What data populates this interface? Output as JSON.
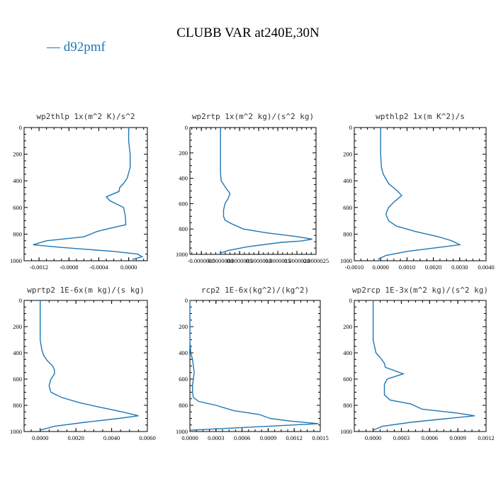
{
  "title": "CLUBB VAR at240E,30N",
  "legend": {
    "label": "d92pmf",
    "color": "#1f77b4"
  },
  "chart_data": [
    {
      "type": "line",
      "title": "wp2thlp   1x(m^2 K)/s^2",
      "xlim": [
        -0.0014,
        0.00025
      ],
      "xticks": [
        -0.0012,
        -0.0008,
        -0.0004,
        0.0
      ],
      "xtick_labels": [
        "-0.0012",
        "-0.0008",
        "-0.0004",
        "0.0000"
      ],
      "ylim": [
        1000,
        0
      ],
      "yticks": [
        0,
        200,
        400,
        600,
        800,
        1000
      ],
      "series": [
        {
          "y": [
            0,
            100,
            200,
            300,
            380,
            420,
            450,
            480,
            520,
            550,
            600,
            650,
            700,
            730,
            760,
            780,
            820,
            850,
            880,
            900,
            930,
            950,
            970,
            990
          ],
          "x": [
            0.0,
            0.0,
            2e-05,
            2e-05,
            -2e-05,
            -7e-05,
            -0.00012,
            -0.00013,
            -0.0003,
            -0.00025,
            -7e-05,
            -5e-05,
            -4e-05,
            -4e-05,
            -0.00028,
            -0.00042,
            -0.0006,
            -0.0011,
            -0.00128,
            -0.0009,
            -0.0002,
            0.00012,
            0.00018,
            5e-05
          ]
        }
      ]
    },
    {
      "type": "line",
      "title": "wp2rtp   1x(m^2 kg)/(s^2 kg)",
      "xlim": [
        -8e-07,
        2.5e-06
      ],
      "xticks": [
        -5e-07,
        0.0,
        5e-07,
        1e-06,
        1.5e-06,
        2e-06,
        2.5e-06
      ],
      "xtick_labels": [
        "-0.0000005",
        "0.0000000",
        "0.0000005",
        "0.0000010",
        "0.0000015",
        "0.0000020",
        "0.0000025"
      ],
      "ylim": [
        1000,
        0
      ],
      "yticks": [
        0,
        200,
        400,
        600,
        800,
        1000
      ],
      "series": [
        {
          "y": [
            0,
            100,
            200,
            300,
            360,
            420,
            480,
            520,
            560,
            600,
            650,
            700,
            730,
            760,
            800,
            830,
            860,
            880,
            895,
            905,
            940,
            970,
            990
          ],
          "x": [
            0.0,
            0.0,
            0.0,
            0.0,
            0.0,
            2e-08,
            1.5e-07,
            2.5e-07,
            2e-07,
            1.2e-07,
            8e-08,
            8e-08,
            1.2e-07,
            3e-07,
            6e-07,
            1.2e-06,
            2e-06,
            2.4e-06,
            2.1e-06,
            1.6e-06,
            7e-07,
            2e-07,
            0.0
          ]
        }
      ]
    },
    {
      "type": "line",
      "title": "wpthlp2   1x(m K^2)/s",
      "xlim": [
        -0.001,
        0.004
      ],
      "xticks": [
        -0.001,
        0.0,
        0.001,
        0.002,
        0.003,
        0.004
      ],
      "xtick_labels": [
        "-0.0010",
        "0.0000",
        "0.0010",
        "0.0020",
        "0.0030",
        "0.0040"
      ],
      "ylim": [
        1000,
        0
      ],
      "yticks": [
        0,
        200,
        400,
        600,
        800,
        1000
      ],
      "series": [
        {
          "y": [
            0,
            100,
            200,
            300,
            350,
            420,
            470,
            510,
            560,
            600,
            650,
            700,
            740,
            780,
            820,
            850,
            880,
            900,
            930,
            960,
            990
          ],
          "x": [
            0.0,
            0.0,
            0.0,
            3e-05,
            0.0001,
            0.0003,
            0.0006,
            0.0008,
            0.0005,
            0.0003,
            0.0002,
            0.0003,
            0.0006,
            0.0013,
            0.0022,
            0.0027,
            0.003,
            0.0022,
            0.001,
            0.0002,
            -0.0001
          ]
        }
      ]
    },
    {
      "type": "line",
      "title": "wprtp2   1E-6x(m kg)/(s kg)",
      "xlim": [
        -0.0009,
        0.006
      ],
      "xticks": [
        0.0,
        0.002,
        0.004,
        0.006
      ],
      "xtick_labels": [
        "0.0000",
        "0.0020",
        "0.0040",
        "0.0060"
      ],
      "ylim": [
        1000,
        0
      ],
      "yticks": [
        0,
        200,
        400,
        600,
        800,
        1000
      ],
      "series": [
        {
          "y": [
            0,
            100,
            200,
            300,
            380,
            420,
            460,
            500,
            530,
            560,
            600,
            650,
            700,
            740,
            780,
            810,
            850,
            880,
            900,
            930,
            960,
            990
          ],
          "x": [
            0.0,
            0.0,
            0.0,
            0.0,
            0.0001,
            0.0002,
            0.0004,
            0.0007,
            0.0008,
            0.0008,
            0.0006,
            0.0005,
            0.0006,
            0.0012,
            0.0022,
            0.0032,
            0.0046,
            0.0055,
            0.0044,
            0.0025,
            0.0008,
            0.0
          ]
        }
      ]
    },
    {
      "type": "line",
      "title": "rcp2   1E-6x(kg^2)/(kg^2)",
      "xlim": [
        0.0,
        0.0015
      ],
      "xticks": [
        0.0,
        0.0003,
        0.0006,
        0.0009,
        0.0012,
        0.0015
      ],
      "xtick_labels": [
        "0.0000",
        "0.0003",
        "0.0006",
        "0.0009",
        "0.0012",
        "0.0015"
      ],
      "ylim": [
        1000,
        0
      ],
      "yticks": [
        0,
        200,
        400,
        600,
        800,
        1000
      ],
      "series": [
        {
          "y": [
            0,
            100,
            200,
            300,
            400,
            450,
            500,
            550,
            600,
            650,
            700,
            740,
            770,
            800,
            840,
            870,
            900,
            920,
            940,
            960,
            980,
            990
          ],
          "x": [
            0.0,
            0.0,
            0.0,
            0.0,
            1e-05,
            3e-05,
            4e-05,
            5e-05,
            4e-05,
            3e-05,
            3e-05,
            4e-05,
            0.0001,
            0.0003,
            0.0005,
            0.0008,
            0.00092,
            0.00115,
            0.00148,
            0.0009,
            0.0003,
            0.0
          ]
        }
      ]
    },
    {
      "type": "line",
      "title": "wp2rcp   1E-3x(m^2 kg)/(s^2 kg)",
      "xlim": [
        -0.0002,
        0.0012
      ],
      "xticks": [
        0.0,
        0.0003,
        0.0006,
        0.0009,
        0.0012
      ],
      "xtick_labels": [
        "0.0000",
        "0.0003",
        "0.0006",
        "0.0009",
        "0.0012"
      ],
      "ylim": [
        1000,
        0
      ],
      "yticks": [
        0,
        200,
        400,
        600,
        800,
        1000
      ],
      "series": [
        {
          "y": [
            0,
            100,
            200,
            300,
            400,
            440,
            480,
            510,
            560,
            600,
            640,
            680,
            720,
            760,
            790,
            830,
            860,
            880,
            900,
            930,
            960,
            990
          ],
          "x": [
            0.0,
            0.0,
            0.0,
            0.0,
            3e-05,
            8e-05,
            0.00012,
            0.00013,
            0.00032,
            0.00015,
            0.00012,
            0.00012,
            0.00012,
            0.00018,
            0.0004,
            0.00052,
            0.0009,
            0.00108,
            0.0008,
            0.0004,
            0.0001,
            0.0
          ]
        }
      ]
    }
  ]
}
